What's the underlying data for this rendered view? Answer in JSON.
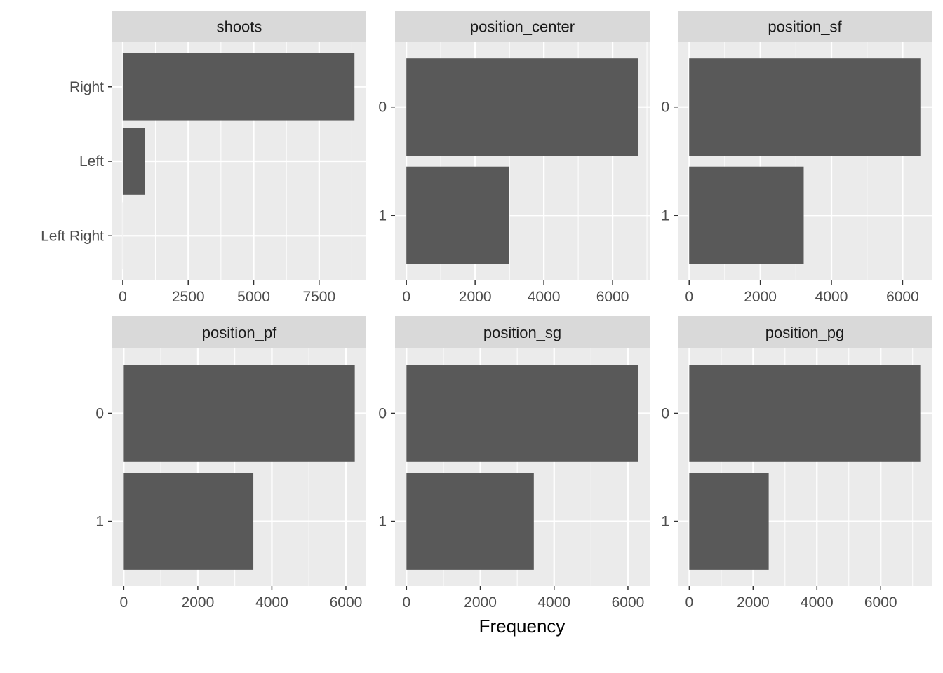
{
  "chart_data": [
    {
      "type": "bar",
      "orientation": "horizontal",
      "facet": "shoots",
      "categories": [
        "Right",
        "Left",
        "Left Right"
      ],
      "values": [
        8850,
        850,
        5
      ],
      "xlim": [
        -400,
        9300
      ],
      "xticks": [
        0,
        2500,
        5000,
        7500
      ],
      "xtick_labels": [
        "0",
        "2500",
        "5000",
        "7500"
      ],
      "grid": true
    },
    {
      "type": "bar",
      "orientation": "horizontal",
      "facet": "position_center",
      "categories": [
        "0",
        "1"
      ],
      "values": [
        6750,
        2980
      ],
      "xlim": [
        -330,
        7080
      ],
      "xticks": [
        0,
        2000,
        4000,
        6000
      ],
      "xtick_labels": [
        "0",
        "2000",
        "4000",
        "6000"
      ],
      "grid": true
    },
    {
      "type": "bar",
      "orientation": "horizontal",
      "facet": "position_sf",
      "categories": [
        "0",
        "1"
      ],
      "values": [
        6500,
        3220
      ],
      "xlim": [
        -320,
        6820
      ],
      "xticks": [
        0,
        2000,
        4000,
        6000
      ],
      "xtick_labels": [
        "0",
        "2000",
        "4000",
        "6000"
      ],
      "grid": true
    },
    {
      "type": "bar",
      "orientation": "horizontal",
      "facet": "position_pf",
      "categories": [
        "0",
        "1"
      ],
      "values": [
        6240,
        3500
      ],
      "xlim": [
        -310,
        6550
      ],
      "xticks": [
        0,
        2000,
        4000,
        6000
      ],
      "xtick_labels": [
        "0",
        "2000",
        "4000",
        "6000"
      ],
      "grid": true
    },
    {
      "type": "bar",
      "orientation": "horizontal",
      "facet": "position_sg",
      "categories": [
        "0",
        "1"
      ],
      "values": [
        6280,
        3450
      ],
      "xlim": [
        -310,
        6590
      ],
      "xticks": [
        0,
        2000,
        4000,
        6000
      ],
      "xtick_labels": [
        "0",
        "2000",
        "4000",
        "6000"
      ],
      "grid": true
    },
    {
      "type": "bar",
      "orientation": "horizontal",
      "facet": "position_pg",
      "categories": [
        "0",
        "1"
      ],
      "values": [
        7240,
        2490
      ],
      "xlim": [
        -360,
        7600
      ],
      "xticks": [
        0,
        2000,
        4000,
        6000
      ],
      "xtick_labels": [
        "0",
        "2000",
        "4000",
        "6000"
      ],
      "grid": true
    }
  ],
  "xlabel": "Frequency",
  "colors": {
    "bar": "#595959",
    "panel": "#ebebeb",
    "strip": "#d9d9d9",
    "grid": "#ffffff"
  }
}
